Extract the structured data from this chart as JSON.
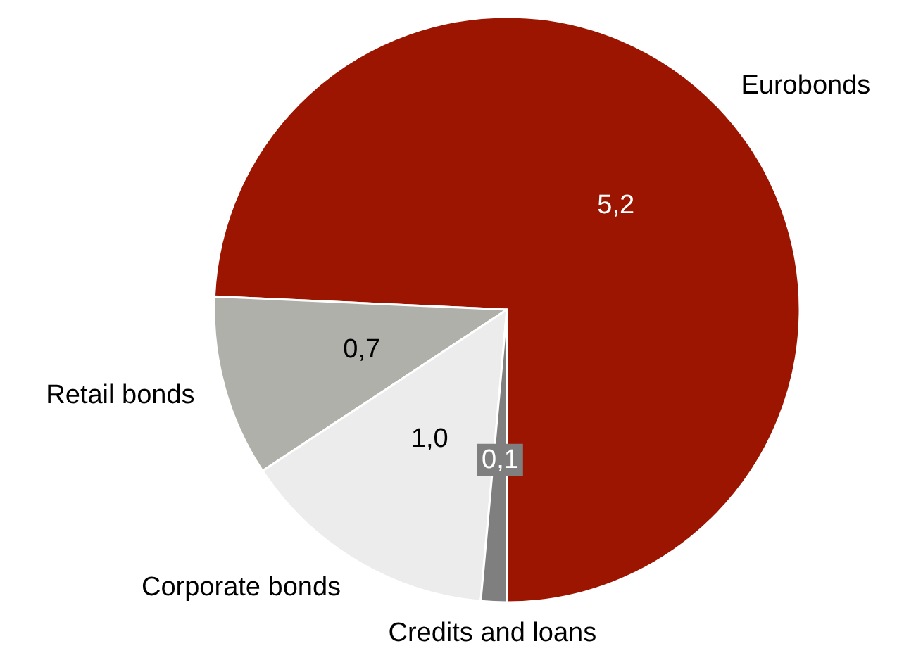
{
  "chart_data": {
    "type": "pie",
    "categories": [
      "Eurobonds",
      "Retail bonds",
      "Corporate bonds",
      "Credits and loans"
    ],
    "values": [
      5.2,
      0.7,
      1.0,
      0.1
    ],
    "colors": [
      "#9b1500",
      "#b0b0ab",
      "#ececec",
      "#7f7f7f"
    ],
    "value_labels": [
      "5,2",
      "0,7",
      "1,0",
      "0,1"
    ]
  }
}
